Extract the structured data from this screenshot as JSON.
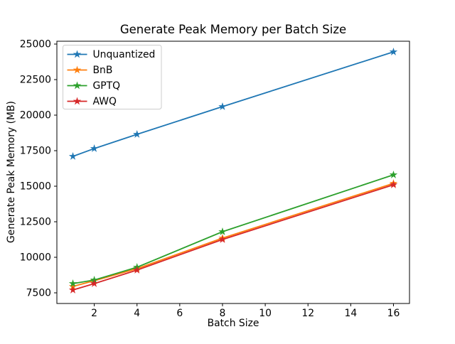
{
  "chart_data": {
    "type": "line",
    "title": "Generate Peak Memory per Batch Size",
    "xlabel": "Batch Size",
    "ylabel": "Generate Peak Memory (MB)",
    "x": [
      1,
      2,
      4,
      8,
      16
    ],
    "series": [
      {
        "name": "Unquantized",
        "color": "#1f77b4",
        "values": [
          17100,
          17650,
          18650,
          20600,
          24450
        ]
      },
      {
        "name": "BnB",
        "color": "#ff7f0e",
        "values": [
          7950,
          8350,
          9200,
          11350,
          15200
        ]
      },
      {
        "name": "GPTQ",
        "color": "#2ca02c",
        "values": [
          8150,
          8400,
          9300,
          11800,
          15800
        ]
      },
      {
        "name": "AWQ",
        "color": "#d62728",
        "values": [
          7700,
          8150,
          9100,
          11250,
          15100
        ]
      }
    ],
    "xticks": [
      2,
      4,
      6,
      8,
      10,
      12,
      14,
      16
    ],
    "yticks": [
      7500,
      10000,
      12500,
      15000,
      17500,
      20000,
      22500,
      25000
    ],
    "xlim": [
      0.25,
      16.75
    ],
    "ylim": [
      6750,
      25200
    ],
    "marker": "star",
    "grid": false,
    "legend_position": "upper left",
    "axis_color": "#000000",
    "legend_border_color": "#cccccc",
    "background_color": "#ffffff"
  }
}
